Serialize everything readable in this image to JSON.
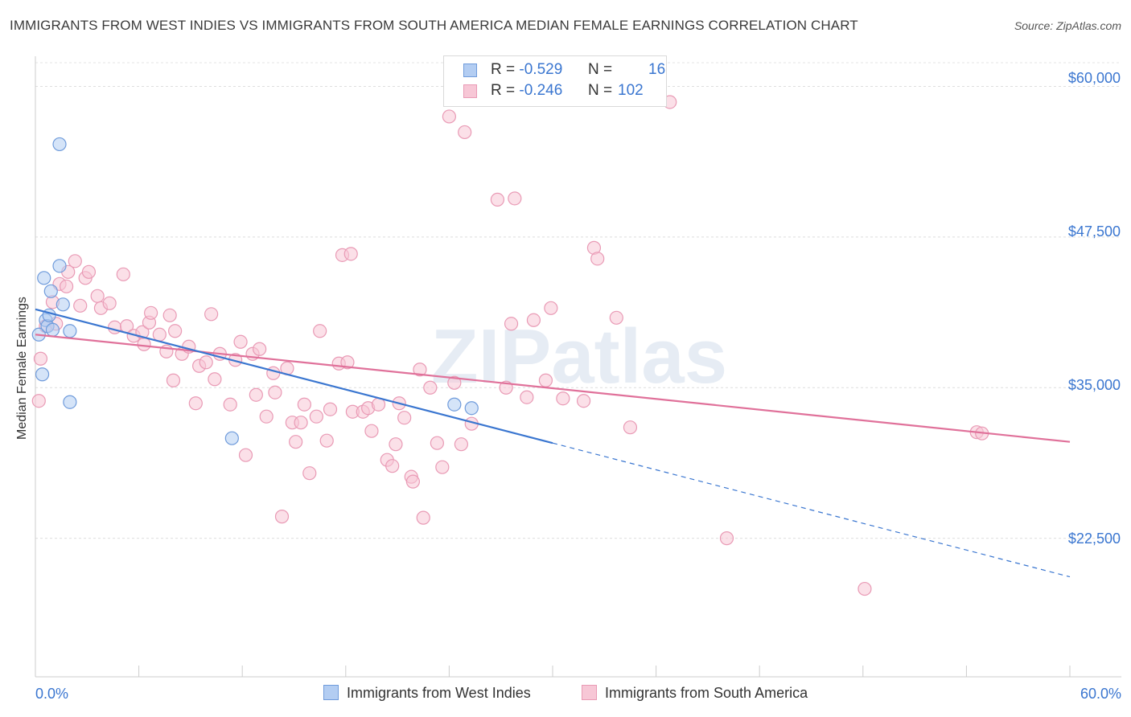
{
  "chart_data": {
    "type": "scatter",
    "title": "IMMIGRANTS FROM WEST INDIES VS IMMIGRANTS FROM SOUTH AMERICA MEDIAN FEMALE EARNINGS CORRELATION CHART",
    "source": "Source: ZipAtlas.com",
    "watermark": "ZIPatlas",
    "ylabel": "Median Female Earnings",
    "xlim": [
      0,
      60
    ],
    "ylim": [
      11000,
      62500
    ],
    "x_tick_labels": {
      "left": "0.0%",
      "right": "60.0%"
    },
    "y_ticks": [
      {
        "value": 60000,
        "label": "$60,000"
      },
      {
        "value": 47500,
        "label": "$47,500"
      },
      {
        "value": 35000,
        "label": "$35,000"
      },
      {
        "value": 22500,
        "label": "$22,500"
      }
    ],
    "series": [
      {
        "name": "Immigrants from West Indies",
        "color": "#3a76d0",
        "fill": "#b3cdf2",
        "stroke": "#6f9bdb",
        "R": "-0.529",
        "N": "16",
        "points": [
          [
            0.2,
            39.4
          ],
          [
            0.4,
            36.1
          ],
          [
            0.5,
            44.1
          ],
          [
            0.6,
            40.6
          ],
          [
            0.7,
            40.1
          ],
          [
            0.8,
            41.0
          ],
          [
            0.9,
            43.0
          ],
          [
            1.0,
            39.8
          ],
          [
            1.4,
            55.2
          ],
          [
            1.4,
            45.1
          ],
          [
            1.6,
            41.9
          ],
          [
            2.0,
            39.7
          ],
          [
            2.0,
            33.8
          ],
          [
            11.4,
            30.8
          ],
          [
            24.3,
            33.6
          ],
          [
            25.3,
            33.3
          ]
        ],
        "trend": {
          "x0": 0,
          "y0": 41.5,
          "x1": 30,
          "y1": 30.4,
          "x_dash_end": 60,
          "y_dash_end": 19.3
        }
      },
      {
        "name": "Immigrants from South America",
        "color": "#e0719a",
        "fill": "#f7c7d6",
        "stroke": "#e99ab5",
        "R": "-0.246",
        "N": "102",
        "points": [
          [
            0.2,
            33.9
          ],
          [
            0.3,
            37.4
          ],
          [
            0.6,
            40.1
          ],
          [
            1.0,
            42.1
          ],
          [
            1.2,
            40.3
          ],
          [
            1.4,
            43.6
          ],
          [
            1.8,
            43.4
          ],
          [
            1.9,
            44.6
          ],
          [
            2.3,
            45.5
          ],
          [
            2.6,
            41.8
          ],
          [
            2.9,
            44.1
          ],
          [
            3.1,
            44.6
          ],
          [
            3.6,
            42.6
          ],
          [
            3.8,
            41.6
          ],
          [
            4.3,
            42.0
          ],
          [
            4.6,
            40.0
          ],
          [
            5.1,
            44.4
          ],
          [
            5.3,
            40.1
          ],
          [
            5.7,
            39.3
          ],
          [
            6.2,
            39.6
          ],
          [
            6.3,
            38.6
          ],
          [
            6.6,
            40.4
          ],
          [
            6.7,
            41.2
          ],
          [
            7.2,
            39.4
          ],
          [
            7.6,
            38.0
          ],
          [
            7.8,
            41.0
          ],
          [
            8.0,
            35.6
          ],
          [
            8.1,
            39.7
          ],
          [
            8.5,
            37.8
          ],
          [
            8.9,
            38.4
          ],
          [
            9.3,
            33.7
          ],
          [
            9.5,
            36.8
          ],
          [
            9.9,
            37.1
          ],
          [
            10.2,
            41.1
          ],
          [
            10.4,
            35.7
          ],
          [
            10.7,
            37.8
          ],
          [
            11.3,
            33.6
          ],
          [
            11.6,
            37.3
          ],
          [
            11.9,
            38.8
          ],
          [
            12.2,
            29.4
          ],
          [
            12.6,
            37.8
          ],
          [
            12.8,
            34.4
          ],
          [
            13.0,
            38.2
          ],
          [
            13.4,
            32.6
          ],
          [
            13.8,
            36.2
          ],
          [
            13.9,
            34.6
          ],
          [
            14.3,
            24.3
          ],
          [
            14.6,
            36.6
          ],
          [
            14.9,
            32.1
          ],
          [
            15.1,
            30.5
          ],
          [
            15.4,
            32.1
          ],
          [
            15.6,
            33.6
          ],
          [
            15.9,
            27.9
          ],
          [
            16.3,
            32.6
          ],
          [
            16.5,
            39.7
          ],
          [
            16.9,
            30.6
          ],
          [
            17.1,
            33.2
          ],
          [
            17.6,
            37.0
          ],
          [
            17.8,
            46.0
          ],
          [
            18.1,
            37.1
          ],
          [
            18.3,
            46.1
          ],
          [
            18.4,
            33.0
          ],
          [
            19.0,
            33.0
          ],
          [
            19.3,
            33.3
          ],
          [
            19.5,
            31.4
          ],
          [
            19.9,
            33.6
          ],
          [
            20.4,
            29.0
          ],
          [
            20.7,
            28.5
          ],
          [
            20.9,
            30.3
          ],
          [
            21.1,
            33.7
          ],
          [
            21.4,
            32.5
          ],
          [
            21.8,
            27.6
          ],
          [
            21.9,
            27.2
          ],
          [
            22.3,
            36.5
          ],
          [
            22.5,
            24.2
          ],
          [
            22.9,
            35.0
          ],
          [
            23.3,
            30.4
          ],
          [
            23.6,
            28.4
          ],
          [
            24.0,
            57.5
          ],
          [
            24.3,
            35.4
          ],
          [
            24.7,
            30.3
          ],
          [
            24.9,
            56.2
          ],
          [
            25.3,
            32.0
          ],
          [
            26.8,
            50.6
          ],
          [
            27.3,
            35.0
          ],
          [
            27.6,
            40.3
          ],
          [
            27.8,
            50.7
          ],
          [
            28.5,
            34.2
          ],
          [
            28.9,
            40.6
          ],
          [
            29.6,
            35.6
          ],
          [
            29.9,
            41.6
          ],
          [
            30.6,
            34.1
          ],
          [
            31.8,
            33.9
          ],
          [
            32.4,
            46.6
          ],
          [
            32.6,
            45.7
          ],
          [
            33.7,
            40.8
          ],
          [
            34.5,
            31.7
          ],
          [
            36.8,
            58.7
          ],
          [
            40.1,
            22.5
          ],
          [
            48.1,
            18.3
          ],
          [
            54.6,
            31.3
          ],
          [
            54.9,
            31.2
          ]
        ],
        "trend": {
          "x0": 0,
          "y0": 39.4,
          "x1": 60,
          "y1": 30.5
        }
      }
    ]
  },
  "legend": {
    "r_label": "R =",
    "n_label": "N ="
  }
}
